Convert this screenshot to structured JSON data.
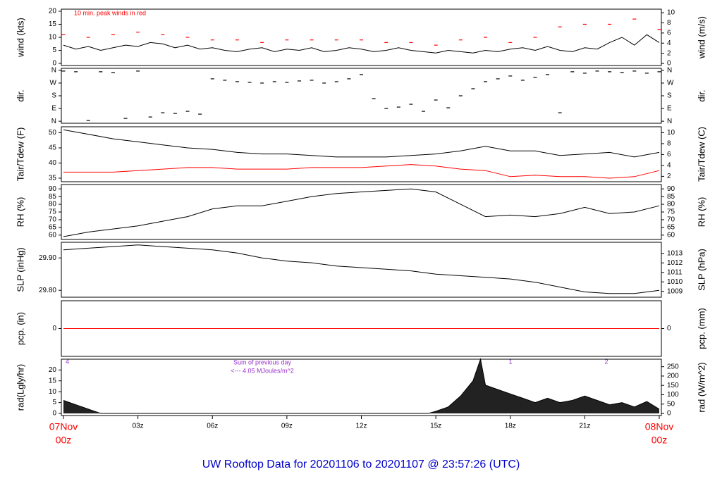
{
  "title": "UW Rooftop Data for 20201106  to  20201107 @ 23:57:26  (UTC)",
  "chart_data": [
    {
      "type": "line",
      "ylabel": "wind (kts)",
      "y2label": "wind (m/s)",
      "annotation": "10 min. peak winds in red",
      "xlim": [
        0,
        24
      ],
      "ylim": [
        0,
        20
      ],
      "yticks": [
        0,
        5,
        10,
        15,
        20
      ],
      "y2lim": [
        0,
        10.29
      ],
      "y2ticks": [
        0,
        2,
        4,
        6,
        8,
        10
      ],
      "series": [
        {
          "type": "line",
          "color": "#000000",
          "x": [
            0,
            0.5,
            1,
            1.5,
            2,
            2.5,
            3,
            3.5,
            4,
            4.5,
            5,
            5.5,
            6,
            6.5,
            7,
            7.5,
            8,
            8.5,
            9,
            9.5,
            10,
            10.5,
            11,
            11.5,
            12,
            12.5,
            13,
            13.5,
            14,
            14.5,
            15,
            15.5,
            16,
            16.5,
            17,
            17.5,
            18,
            18.5,
            19,
            19.5,
            20,
            20.5,
            21,
            21.5,
            22,
            22.5,
            23,
            23.5,
            24
          ],
          "values": [
            7,
            5.5,
            6.5,
            5,
            6,
            7,
            6.5,
            8,
            7.5,
            6,
            7,
            5.5,
            6,
            5,
            4.5,
            5.5,
            6,
            4.5,
            5.5,
            5,
            6,
            4.5,
            5,
            6,
            5.5,
            4.5,
            5,
            6,
            5,
            4.5,
            4,
            5,
            4.5,
            4,
            5,
            4.5,
            5.5,
            6,
            5,
            6.5,
            5,
            4.5,
            6,
            5.5,
            8,
            10,
            7,
            11,
            8
          ]
        },
        {
          "type": "scatter",
          "color": "#ff0000",
          "x": [
            0,
            1,
            2,
            3,
            4,
            5,
            6,
            7,
            8,
            9,
            10,
            11,
            12,
            13,
            14,
            15,
            16,
            17,
            18,
            19,
            20,
            21,
            22,
            23,
            24
          ],
          "values": [
            11,
            10,
            11,
            12,
            11,
            10,
            9,
            9,
            8,
            9,
            9,
            9,
            9,
            8,
            8,
            7,
            9,
            10,
            8,
            10,
            14,
            15,
            15,
            17,
            13
          ]
        }
      ]
    },
    {
      "type": "scatter",
      "ylabel": "dir.",
      "y2label": "dir.",
      "xlim": [
        0,
        24
      ],
      "ylim": [
        0,
        360
      ],
      "yticks": [
        {
          "value": 0,
          "label": "N"
        },
        {
          "value": 90,
          "label": "E"
        },
        {
          "value": 180,
          "label": "S"
        },
        {
          "value": 270,
          "label": "W"
        },
        {
          "value": 360,
          "label": "N"
        }
      ],
      "y2lim": [
        0,
        360
      ],
      "y2ticks": [
        {
          "value": 0,
          "label": "N"
        },
        {
          "value": 90,
          "label": "E"
        },
        {
          "value": 180,
          "label": "S"
        },
        {
          "value": 270,
          "label": "W"
        },
        {
          "value": 360,
          "label": "N"
        }
      ],
      "series": [
        {
          "type": "scatter",
          "color": "#000000",
          "x": [
            0,
            0.5,
            1,
            1.5,
            2,
            2.5,
            3,
            3.5,
            4,
            4.5,
            5,
            5.5,
            6,
            6.5,
            7,
            7.5,
            8,
            8.5,
            9,
            9.5,
            10,
            10.5,
            11,
            11.5,
            12,
            12.5,
            13,
            13.5,
            14,
            14.5,
            15,
            15.5,
            16,
            16.5,
            17,
            17.5,
            18,
            18.5,
            19,
            19.5,
            20,
            20.5,
            21,
            21.5,
            22,
            22.5,
            23,
            23.5,
            24
          ],
          "values": [
            355,
            350,
            5,
            350,
            345,
            20,
            355,
            30,
            60,
            55,
            70,
            50,
            300,
            290,
            280,
            275,
            270,
            280,
            275,
            285,
            290,
            270,
            280,
            300,
            330,
            160,
            90,
            100,
            120,
            70,
            150,
            95,
            180,
            230,
            280,
            300,
            320,
            290,
            310,
            330,
            60,
            350,
            340,
            355,
            350,
            345,
            355,
            340,
            350
          ]
        }
      ]
    },
    {
      "type": "line",
      "ylabel": "Tair/Tdew (F)",
      "y2label": "Tair/Tdew (C)",
      "xlim": [
        0,
        24
      ],
      "ylim": [
        34.5,
        51.3
      ],
      "yticks": [
        35,
        40,
        45,
        50
      ],
      "y2lim": [
        1.39,
        10.72
      ],
      "y2ticks": [
        2,
        4,
        6,
        8,
        10
      ],
      "series": [
        {
          "type": "line",
          "color": "#000000",
          "x": [
            0,
            1,
            2,
            3,
            4,
            5,
            6,
            7,
            8,
            9,
            10,
            11,
            12,
            13,
            14,
            15,
            16,
            17,
            18,
            19,
            20,
            21,
            22,
            23,
            24
          ],
          "values": [
            51,
            49.5,
            48,
            47,
            46,
            45,
            44.5,
            43.5,
            43,
            43,
            42.5,
            42,
            42,
            42,
            42.5,
            43,
            44,
            45.5,
            44,
            44,
            42.5,
            43,
            43.5,
            42,
            43.5
          ]
        },
        {
          "type": "line",
          "color": "#ff0000",
          "x": [
            0,
            1,
            2,
            3,
            4,
            5,
            6,
            7,
            8,
            9,
            10,
            11,
            12,
            13,
            14,
            15,
            16,
            17,
            18,
            19,
            20,
            21,
            22,
            23,
            24
          ],
          "values": [
            37,
            37,
            37,
            37.5,
            38,
            38.5,
            38.5,
            38,
            38,
            38,
            38.5,
            38.5,
            38.5,
            39,
            39.5,
            39,
            38,
            37.5,
            35.5,
            36,
            35.5,
            35.5,
            35,
            35.5,
            37.5
          ]
        }
      ]
    },
    {
      "type": "line",
      "ylabel": "RH (%)",
      "y2label": "RH (%)",
      "xlim": [
        0,
        24
      ],
      "ylim": [
        58.5,
        91.5
      ],
      "yticks": [
        60,
        65,
        70,
        75,
        80,
        85,
        90
      ],
      "y2lim": [
        58.5,
        91.5
      ],
      "y2ticks": [
        60,
        65,
        70,
        75,
        80,
        85,
        90
      ],
      "series": [
        {
          "type": "line",
          "color": "#000000",
          "x": [
            0,
            1,
            2,
            3,
            4,
            5,
            6,
            7,
            8,
            9,
            10,
            11,
            12,
            13,
            14,
            15,
            16,
            17,
            18,
            19,
            20,
            21,
            22,
            23,
            24
          ],
          "values": [
            59,
            62,
            64,
            66,
            69,
            72,
            77,
            79,
            79,
            82,
            85,
            87,
            88,
            89,
            90,
            88,
            80,
            72,
            73,
            72,
            74,
            78,
            74,
            75,
            79
          ]
        }
      ]
    },
    {
      "type": "line",
      "ylabel": "SLP (inHg)",
      "y2label": "SLP (hPa)",
      "xlim": [
        0,
        24
      ],
      "ylim": [
        29.785,
        29.942
      ],
      "yticks": [
        {
          "value": 29.8,
          "label": "29.80"
        },
        {
          "value": 29.9,
          "label": "29.90"
        }
      ],
      "y2lim": [
        1008.6,
        1013.96
      ],
      "y2ticks": [
        1009,
        1010,
        1011,
        1012,
        1013
      ],
      "series": [
        {
          "type": "line",
          "color": "#000000",
          "x": [
            0,
            1,
            2,
            3,
            4,
            5,
            6,
            7,
            8,
            9,
            10,
            11,
            12,
            13,
            14,
            15,
            16,
            17,
            18,
            19,
            20,
            21,
            22,
            23,
            24
          ],
          "values": [
            29.925,
            29.93,
            29.935,
            29.94,
            29.935,
            29.93,
            29.925,
            29.915,
            29.9,
            29.89,
            29.885,
            29.875,
            29.87,
            29.865,
            29.86,
            29.85,
            29.845,
            29.84,
            29.835,
            29.825,
            29.81,
            29.795,
            29.79,
            29.79,
            29.8
          ]
        }
      ]
    },
    {
      "type": "line",
      "ylabel": "pcp. (in)",
      "y2label": "pcp. (mm)",
      "xlim": [
        0,
        24
      ],
      "ylim": [
        -1,
        1
      ],
      "yticks": [
        0
      ],
      "y2lim": [
        -25.4,
        25.4
      ],
      "y2ticks": [
        0
      ],
      "series": [
        {
          "type": "line",
          "color": "#ff0000",
          "x": [
            0,
            24
          ],
          "values": [
            0,
            0
          ]
        }
      ]
    },
    {
      "type": "area",
      "ylabel": "rad(Lgly/hr)",
      "y2label": "rad (W/m^2)",
      "annotations": [
        "4",
        "Sum of previous day",
        "<--- 4.05 MJoules/m^2",
        "1",
        "2"
      ],
      "xlim": [
        0,
        24
      ],
      "ylim": [
        0,
        24
      ],
      "yticks": [
        0,
        5,
        10,
        15,
        20
      ],
      "y2lim": [
        0,
        279
      ],
      "y2ticks": [
        0,
        50,
        100,
        150,
        200,
        250
      ],
      "xticks": [
        {
          "value": 0,
          "label": "00z"
        },
        {
          "value": 3,
          "label": "03z"
        },
        {
          "value": 6,
          "label": "06z"
        },
        {
          "value": 9,
          "label": "09z"
        },
        {
          "value": 12,
          "label": "12z"
        },
        {
          "value": 15,
          "label": "15z"
        },
        {
          "value": 18,
          "label": "18z"
        },
        {
          "value": 21,
          "label": "21z"
        },
        {
          "value": 24,
          "label": "00z"
        }
      ],
      "xdates": [
        {
          "value": 0,
          "label": "07Nov"
        },
        {
          "value": 24,
          "label": "08Nov"
        }
      ],
      "series": [
        {
          "type": "area",
          "color": "#222222",
          "x": [
            0,
            0.5,
            1,
            1.5,
            14.7,
            15,
            15.5,
            16,
            16.5,
            16.8,
            17,
            17.5,
            18,
            18.5,
            19,
            19.5,
            20,
            20.5,
            21,
            21.5,
            22,
            22.5,
            23,
            23.5,
            24
          ],
          "values": [
            6,
            4,
            2,
            0,
            0,
            1,
            3,
            8,
            15,
            25,
            13,
            11,
            9,
            7,
            5,
            7,
            5,
            6,
            8,
            6,
            4,
            5,
            3,
            5.5,
            2
          ]
        }
      ]
    }
  ]
}
